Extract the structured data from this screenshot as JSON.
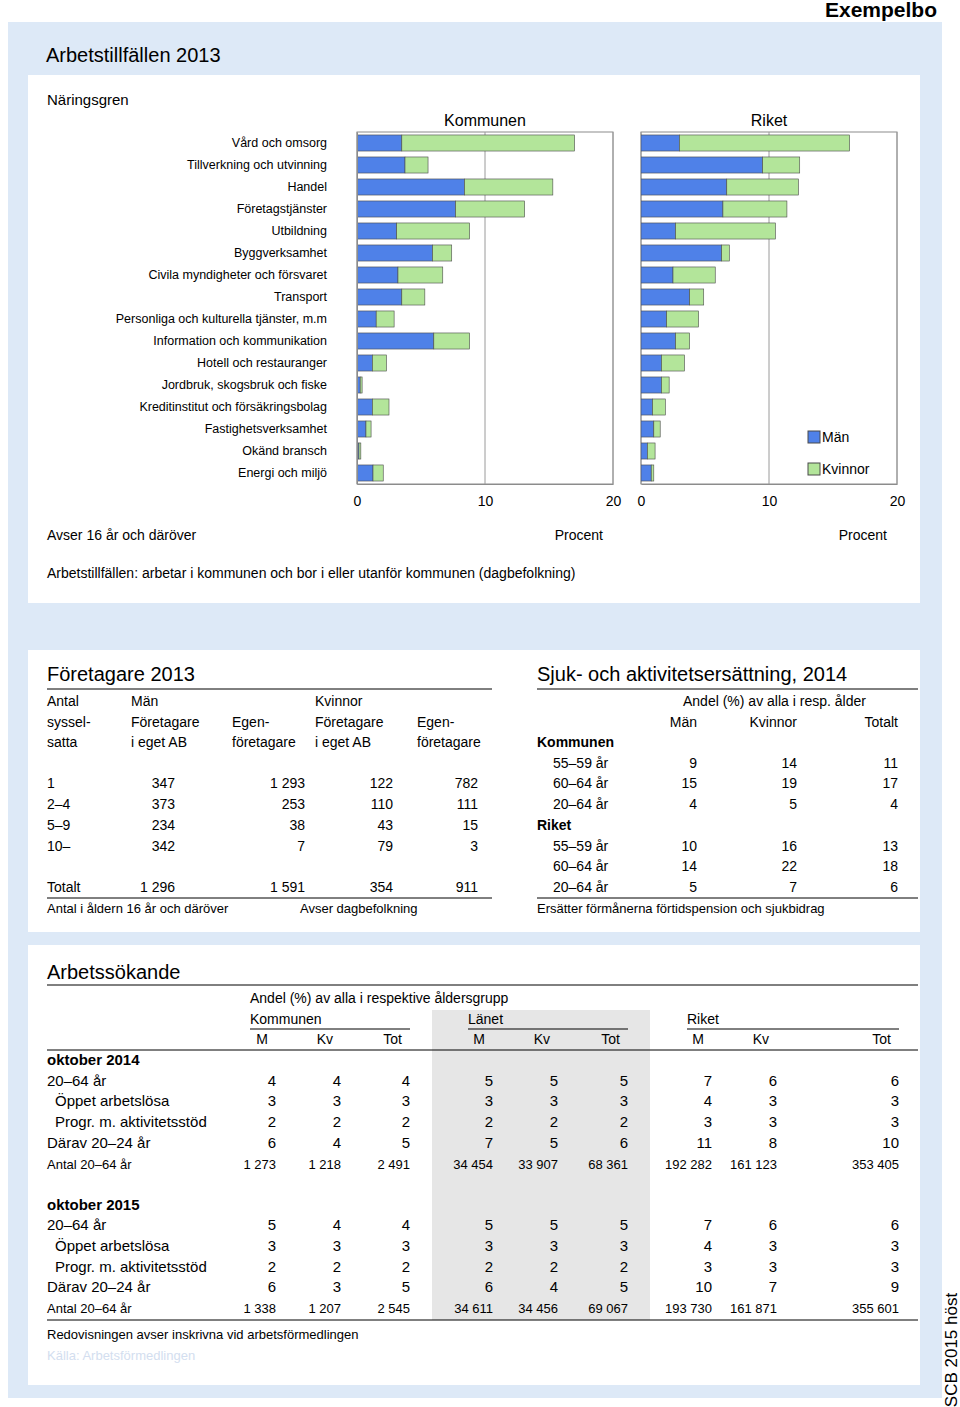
{
  "page": {
    "municipality": "Exempelbo",
    "side_label": "SCB 2015 höst"
  },
  "section1": {
    "title": "Arbetstillfällen 2013",
    "notes": [
      "Avser 16 år och däröver",
      "Arbetstillfällen: arbetar i kommunen och bor i eller utanför kommunen (dagbefolkning)"
    ]
  },
  "chart_data": [
    {
      "type": "bar",
      "title": "Kommunen",
      "ylabel": "Näringsgren",
      "xlabel": "Procent",
      "orientation": "horizontal",
      "stacked": true,
      "grid": true,
      "categories": [
        "Vård och omsorg",
        "Tillverkning och utvinning",
        "Handel",
        "Företagstjänster",
        "Utbildning",
        "Byggverksamhet",
        "Civila myndigheter och försvaret",
        "Transport",
        "Personliga och kulturella tjänster, m.m",
        "Information och kommunikation",
        "Hotell och restauranger",
        "Jordbruk, skogsbruk och fiske",
        "Kreditinstitut och försäkringsbolag",
        "Fastighetsverksamhet",
        "Okänd bransch",
        "Energi och miljö"
      ],
      "series": [
        {
          "name": "Män",
          "color": "#4f81e8",
          "values": [
            3.5,
            3.75,
            8.4,
            7.7,
            3.1,
            5.9,
            3.2,
            3.5,
            1.5,
            6.0,
            1.2,
            0.25,
            1.2,
            0.7,
            0.15,
            1.25
          ]
        },
        {
          "name": "Kvinnor",
          "color": "#b3e59a",
          "values": [
            13.5,
            1.8,
            6.9,
            5.4,
            5.7,
            1.5,
            3.5,
            1.8,
            1.4,
            2.8,
            1.1,
            0.15,
            1.3,
            0.4,
            0.15,
            0.8
          ]
        }
      ],
      "xlim": [
        0,
        20
      ],
      "xticks": [
        0,
        10,
        20
      ]
    },
    {
      "type": "bar",
      "title": "Riket",
      "xlabel": "Procent",
      "orientation": "horizontal",
      "stacked": true,
      "grid": true,
      "tick_labels": "x",
      "legend": "lower right",
      "categories": [
        "Vård och omsorg",
        "Tillverkning och utvinning",
        "Handel",
        "Företagstjänster",
        "Utbildning",
        "Byggverksamhet",
        "Civila myndigheter och försvaret",
        "Transport",
        "Personliga och kulturella tjänster, m.m",
        "Information och kommunikation",
        "Hotell och restauranger",
        "Jordbruk, skogsbruk och fiske",
        "Kreditinstitut och försäkringsbolag",
        "Fastighetsverksamhet",
        "Okänd bransch",
        "Energi och miljö"
      ],
      "series": [
        {
          "name": "Män",
          "color": "#4f81e8",
          "values": [
            3.0,
            9.5,
            6.7,
            6.4,
            2.7,
            6.3,
            2.5,
            3.8,
            2.0,
            2.7,
            1.6,
            1.6,
            0.9,
            1.0,
            0.5,
            0.8
          ]
        },
        {
          "name": "Kvinnor",
          "color": "#b3e59a",
          "values": [
            13.3,
            2.9,
            5.6,
            5.0,
            7.8,
            0.6,
            3.3,
            1.1,
            2.5,
            1.1,
            1.8,
            0.6,
            1.0,
            0.5,
            0.6,
            0.2
          ]
        }
      ],
      "xlim": [
        0,
        20
      ],
      "xticks": [
        0,
        10,
        20
      ]
    }
  ],
  "foretagare": {
    "title": "Företagare 2013",
    "headers": [
      [
        "Antal",
        "Män",
        "Kvinnor"
      ],
      [
        "syssel-",
        "Företagare",
        "Egen-",
        "Företagare",
        "Egen-"
      ],
      [
        "satta",
        "i eget AB",
        "företagare",
        "i eget AB",
        "företagare"
      ]
    ],
    "rows": [
      [
        "1",
        "347",
        "1 293",
        "122",
        "782"
      ],
      [
        "2–4",
        "373",
        "253",
        "110",
        "111"
      ],
      [
        "5–9",
        "234",
        "38",
        "43",
        "15"
      ],
      [
        "10–",
        "342",
        "7",
        "79",
        "3"
      ]
    ],
    "total": [
      "Totalt",
      "1 296",
      "1 591",
      "354",
      "911"
    ],
    "notes": [
      "Antal i åldern 16 år och däröver",
      "Avser dagbefolkning"
    ]
  },
  "sjuk": {
    "title": "Sjuk- och aktivitetsersättning, 2014",
    "header": "Andel (%) av alla i resp. ålder",
    "columns": [
      "Män",
      "Kvinnor",
      "Totalt"
    ],
    "groups": [
      {
        "name": "Kommunen",
        "rows": [
          [
            "55–59 år",
            9,
            14,
            11
          ],
          [
            "60–64 år",
            15,
            19,
            17
          ],
          [
            "20–64 år",
            4,
            5,
            4
          ]
        ]
      },
      {
        "name": "Riket",
        "rows": [
          [
            "55–59 år",
            10,
            16,
            13
          ],
          [
            "60–64 år",
            14,
            22,
            18
          ],
          [
            "20–64 år",
            5,
            7,
            6
          ]
        ]
      }
    ],
    "note": "Ersätter förmånerna förtidspension och sjukbidrag"
  },
  "arbetssokande": {
    "title": "Arbetssökande",
    "subtitle": "Andel (%) av alla i respektive åldersgrupp",
    "regions": [
      "Kommunen",
      "Länet",
      "Riket"
    ],
    "columns": [
      "M",
      "Kv",
      "Tot"
    ],
    "periods": [
      {
        "name": "oktober 2014",
        "rows": [
          {
            "label": "20–64 år",
            "values": [
              4,
              4,
              4,
              5,
              5,
              5,
              7,
              6,
              6
            ]
          },
          {
            "label": "Öppet arbetslösa",
            "values": [
              3,
              3,
              3,
              3,
              3,
              3,
              4,
              3,
              3
            ]
          },
          {
            "label": "Progr. m. aktivitetsstöd",
            "values": [
              2,
              2,
              2,
              2,
              2,
              2,
              3,
              3,
              3
            ]
          },
          {
            "label": "Därav 20–24 år",
            "values": [
              6,
              4,
              5,
              7,
              5,
              6,
              11,
              8,
              10
            ]
          }
        ],
        "count": {
          "label": "Antal 20–64 år",
          "values": [
            "1 273",
            "1 218",
            "2 491",
            "34 454",
            "33 907",
            "68 361",
            "192 282",
            "161 123",
            "353 405"
          ]
        }
      },
      {
        "name": "oktober 2015",
        "rows": [
          {
            "label": "20–64 år",
            "values": [
              5,
              4,
              4,
              5,
              5,
              5,
              7,
              6,
              6
            ]
          },
          {
            "label": "Öppet arbetslösa",
            "values": [
              3,
              3,
              3,
              3,
              3,
              3,
              4,
              3,
              3
            ]
          },
          {
            "label": "Progr. m. aktivitetsstöd",
            "values": [
              2,
              2,
              2,
              2,
              2,
              2,
              3,
              3,
              3
            ]
          },
          {
            "label": "Därav 20–24 år",
            "values": [
              6,
              3,
              5,
              6,
              4,
              5,
              10,
              7,
              9
            ]
          }
        ],
        "count": {
          "label": "Antal 20–64 år",
          "values": [
            "1 338",
            "1 207",
            "2 545",
            "34 611",
            "34 456",
            "69 067",
            "193 730",
            "161 871",
            "355 601"
          ]
        }
      }
    ],
    "note": "Redovisningen avser inskrivna vid arbetsförmedlingen",
    "source": "Källa: Arbetsförmedlingen"
  }
}
